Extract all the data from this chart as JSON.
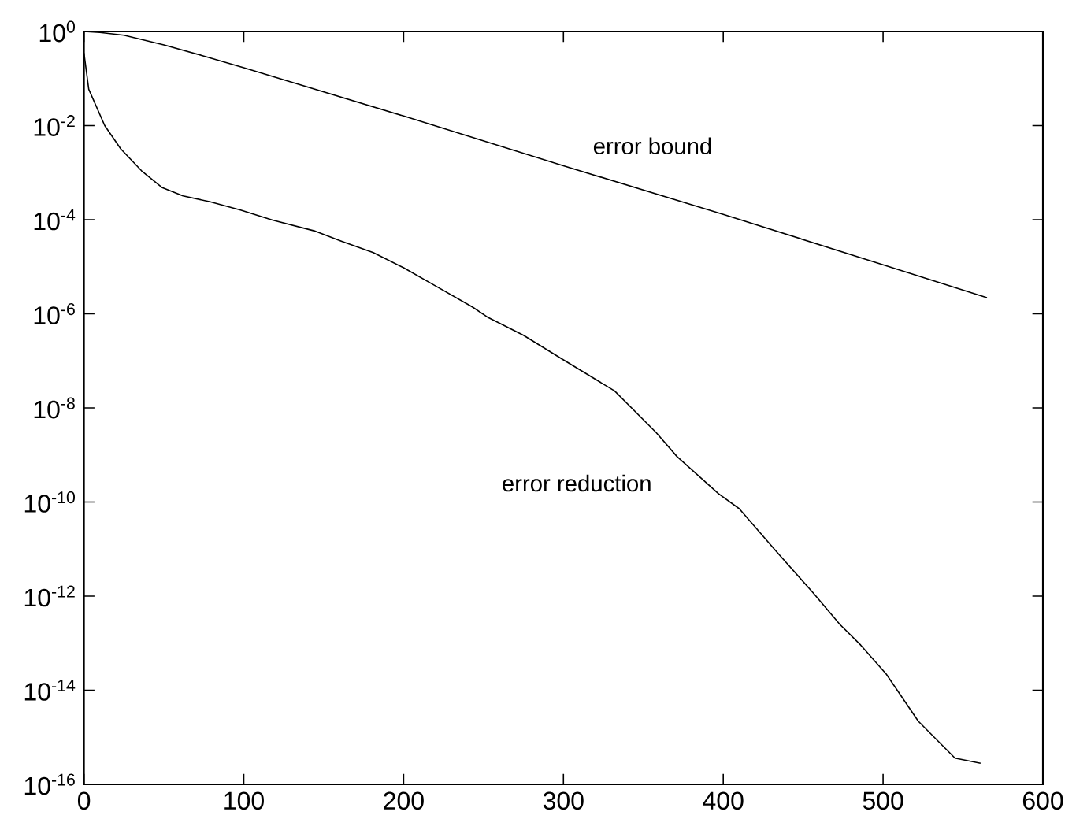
{
  "chart_data": {
    "type": "line",
    "log": "y",
    "xlim": [
      0,
      600
    ],
    "ylim": [
      1e-16,
      1
    ],
    "xticks": [
      0,
      100,
      200,
      300,
      400,
      500,
      600
    ],
    "yticks": [
      {
        "value": 1,
        "label": "10$^{0}$"
      },
      {
        "value": 0.01,
        "label": "10$^{-2}$"
      },
      {
        "value": 0.0001,
        "label": "10$^{-4}$"
      },
      {
        "value": 1e-06,
        "label": "10$^{-6}$"
      },
      {
        "value": 1e-08,
        "label": "10$^{-8}$"
      },
      {
        "value": 1e-10,
        "label": "10$^{-10}$"
      },
      {
        "value": 1e-12,
        "label": "10$^{-12}$"
      },
      {
        "value": 1e-14,
        "label": "10$^{-14}$"
      },
      {
        "value": 1e-16,
        "label": "10$^{-16}$"
      }
    ],
    "grid": false,
    "legend": false,
    "marker": "none",
    "line_style": "solid",
    "series": [
      {
        "name": "error bound",
        "color": "#000000",
        "x": [
          0,
          10,
          25,
          50,
          75,
          100,
          200,
          300,
          400,
          500,
          565
        ],
        "values": [
          1,
          0.95,
          0.83,
          0.52,
          0.3,
          0.17,
          0.016,
          0.0014,
          0.00013,
          1.1e-05,
          2.2e-06
        ]
      },
      {
        "name": "error reduction",
        "color": "#000000",
        "x": [
          0,
          3,
          13,
          23,
          36,
          49,
          62,
          79,
          98,
          118,
          144,
          161,
          181,
          200,
          220,
          243,
          253,
          275,
          299,
          332,
          358,
          371,
          397,
          410,
          433,
          456,
          473,
          486,
          502,
          522,
          545,
          561
        ],
        "values": [
          0.35,
          0.059,
          0.01,
          0.0032,
          0.0011,
          0.00048,
          0.00032,
          0.00024,
          0.00016,
          9.8e-05,
          5.8e-05,
          3.5e-05,
          2e-05,
          9.5e-06,
          3.9e-06,
          1.4e-06,
          8.3e-07,
          3.5e-07,
          1.1e-07,
          2.3e-08,
          3e-09,
          9.3e-10,
          1.5e-10,
          7.2e-11,
          9.1e-12,
          1.2e-12,
          2.5e-13,
          9.1e-14,
          2.2e-14,
          2.2e-15,
          3.6e-16,
          2.8e-16
        ]
      }
    ]
  }
}
